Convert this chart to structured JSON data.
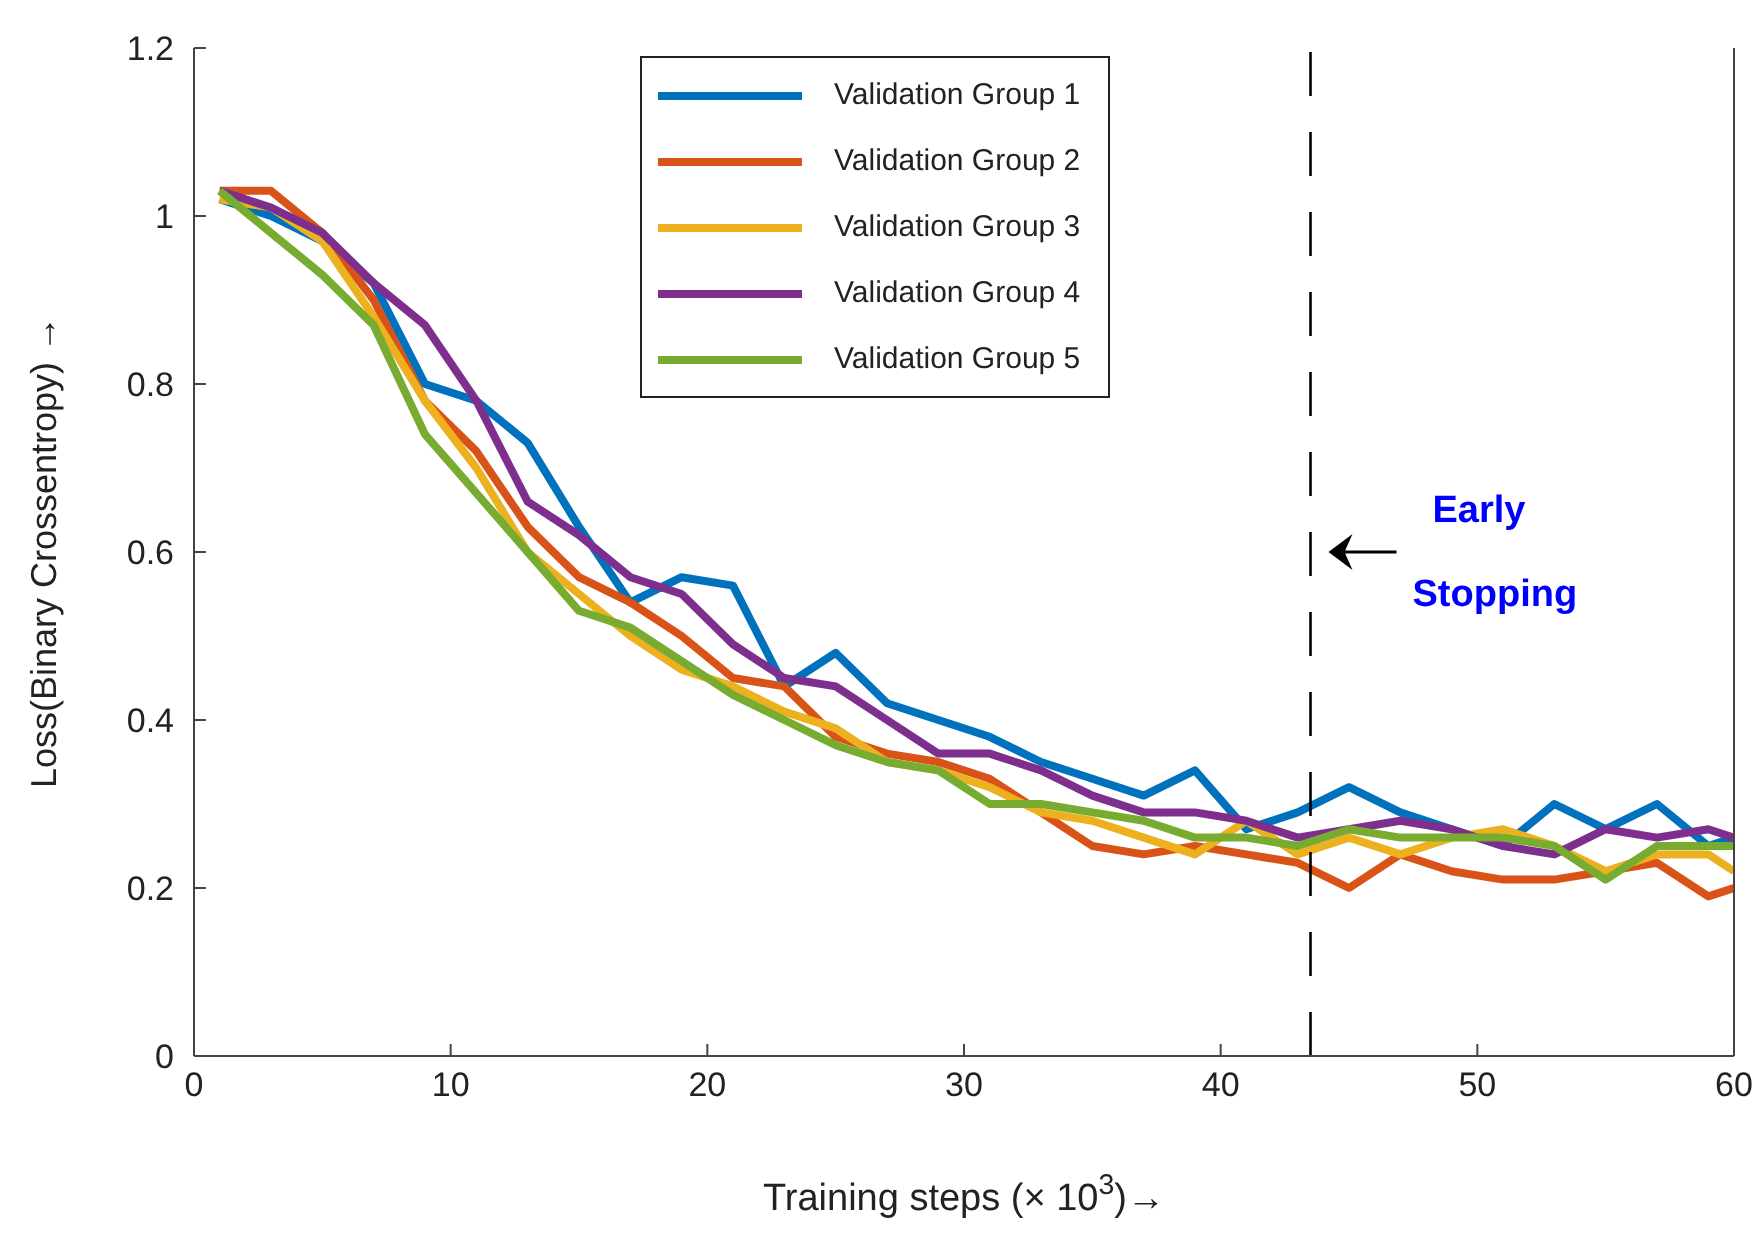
{
  "chart_data": {
    "type": "line",
    "xlabel": "Training steps (× 10$^{3}$)→",
    "ylabel": "Loss(Binary Crossentropy) →",
    "x": [
      1,
      3,
      5,
      7,
      9,
      11,
      13,
      15,
      17,
      19,
      21,
      23,
      25,
      27,
      29,
      31,
      33,
      35,
      37,
      39,
      41,
      43,
      45,
      47,
      49,
      51,
      53,
      55,
      57,
      59,
      60
    ],
    "series": [
      {
        "name": "Validation Group 1",
        "color": "#0072bd",
        "values": [
          1.02,
          1.0,
          0.97,
          0.92,
          0.8,
          0.78,
          0.73,
          0.63,
          0.54,
          0.57,
          0.56,
          0.44,
          0.48,
          0.42,
          0.4,
          0.38,
          0.35,
          0.33,
          0.31,
          0.34,
          0.27,
          0.29,
          0.32,
          0.29,
          0.27,
          0.25,
          0.3,
          0.27,
          0.3,
          0.25,
          0.26
        ]
      },
      {
        "name": "Validation Group 2",
        "color": "#d95319",
        "values": [
          1.03,
          1.03,
          0.98,
          0.9,
          0.78,
          0.72,
          0.63,
          0.57,
          0.54,
          0.5,
          0.45,
          0.44,
          0.38,
          0.36,
          0.35,
          0.33,
          0.29,
          0.25,
          0.24,
          0.25,
          0.24,
          0.23,
          0.2,
          0.24,
          0.22,
          0.21,
          0.21,
          0.22,
          0.23,
          0.19,
          0.2
        ]
      },
      {
        "name": "Validation Group 3",
        "color": "#edb120",
        "values": [
          1.02,
          1.01,
          0.97,
          0.88,
          0.78,
          0.7,
          0.6,
          0.55,
          0.5,
          0.46,
          0.44,
          0.41,
          0.39,
          0.35,
          0.34,
          0.32,
          0.29,
          0.28,
          0.26,
          0.24,
          0.28,
          0.24,
          0.26,
          0.24,
          0.26,
          0.27,
          0.25,
          0.22,
          0.24,
          0.24,
          0.22
        ]
      },
      {
        "name": "Validation Group 4",
        "color": "#7e2f8e",
        "values": [
          1.03,
          1.01,
          0.98,
          0.92,
          0.87,
          0.78,
          0.66,
          0.62,
          0.57,
          0.55,
          0.49,
          0.45,
          0.44,
          0.4,
          0.36,
          0.36,
          0.34,
          0.31,
          0.29,
          0.29,
          0.28,
          0.26,
          0.27,
          0.28,
          0.27,
          0.25,
          0.24,
          0.27,
          0.26,
          0.27,
          0.26
        ]
      },
      {
        "name": "Validation Group 5",
        "color": "#77ac30",
        "values": [
          1.03,
          0.98,
          0.93,
          0.87,
          0.74,
          0.67,
          0.6,
          0.53,
          0.51,
          0.47,
          0.43,
          0.4,
          0.37,
          0.35,
          0.34,
          0.3,
          0.3,
          0.29,
          0.28,
          0.26,
          0.26,
          0.25,
          0.27,
          0.26,
          0.26,
          0.26,
          0.25,
          0.21,
          0.25,
          0.25,
          0.25
        ]
      }
    ],
    "xlim": [
      0,
      60
    ],
    "xticks": [
      0,
      10,
      20,
      30,
      40,
      50,
      60
    ],
    "ylim": [
      0,
      1.2
    ],
    "yticks": [
      0,
      0.2,
      0.4,
      0.6,
      0.8,
      1,
      1.2
    ],
    "ref_lines": [
      {
        "axis": "x",
        "value": 43.5,
        "line_style": "dashed",
        "color": "#000000"
      }
    ],
    "annotations": [
      "Early Stopping"
    ],
    "legend": "top",
    "grid": false,
    "marker": "none",
    "line_style": "solid"
  }
}
